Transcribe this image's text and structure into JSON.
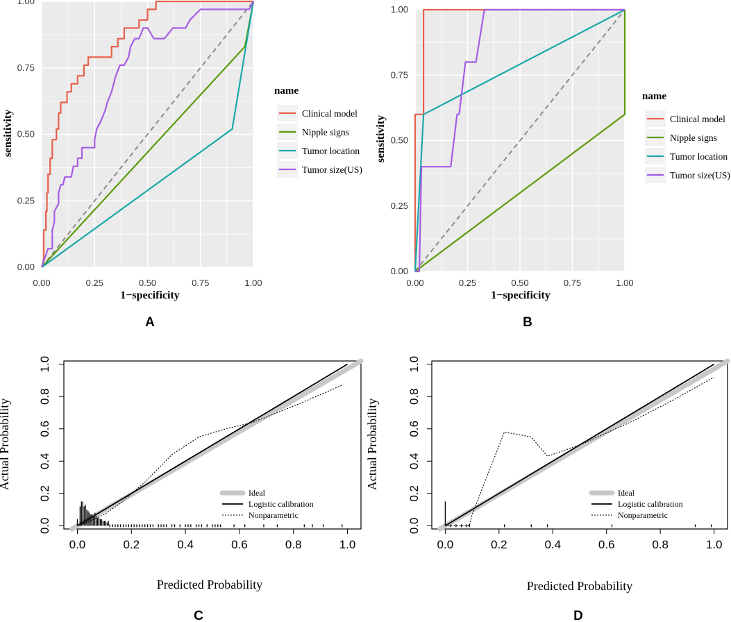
{
  "colors": {
    "clinical": "#E8604C",
    "nipple": "#5C9A0C",
    "location": "#1BA8A8",
    "size": "#A65CE6",
    "diagonal": "#8C8C8C",
    "panel_bg": "#EBEBEB",
    "grid": "#FFFFFF",
    "ideal": "#C8C8C8",
    "black": "#000000"
  },
  "chart_data": [
    {
      "panel": "A",
      "type": "line",
      "title": "",
      "xlabel": "1−specificity",
      "ylabel": "sensitivity",
      "xlim": [
        0,
        1
      ],
      "ylim": [
        0,
        1
      ],
      "xticks": [
        "0.00",
        "0.25",
        "0.50",
        "0.75",
        "1.00"
      ],
      "yticks": [
        "0.00",
        "0.25",
        "0.50",
        "0.75",
        "1.00"
      ],
      "grid": true,
      "legend_title": "name",
      "legend_position": "right",
      "diagonal": true,
      "series": [
        {
          "name": "Clinical model",
          "color_key": "clinical",
          "points": [
            [
              0,
              0
            ],
            [
              0.01,
              0.03
            ],
            [
              0.01,
              0.14
            ],
            [
              0.02,
              0.14
            ],
            [
              0.02,
              0.21
            ],
            [
              0.025,
              0.21
            ],
            [
              0.025,
              0.28
            ],
            [
              0.03,
              0.28
            ],
            [
              0.03,
              0.35
            ],
            [
              0.04,
              0.35
            ],
            [
              0.04,
              0.41
            ],
            [
              0.05,
              0.41
            ],
            [
              0.05,
              0.48
            ],
            [
              0.07,
              0.48
            ],
            [
              0.07,
              0.52
            ],
            [
              0.08,
              0.52
            ],
            [
              0.08,
              0.58
            ],
            [
              0.09,
              0.58
            ],
            [
              0.09,
              0.62
            ],
            [
              0.12,
              0.62
            ],
            [
              0.12,
              0.66
            ],
            [
              0.14,
              0.66
            ],
            [
              0.14,
              0.69
            ],
            [
              0.17,
              0.69
            ],
            [
              0.17,
              0.72
            ],
            [
              0.2,
              0.72
            ],
            [
              0.2,
              0.76
            ],
            [
              0.22,
              0.76
            ],
            [
              0.22,
              0.79
            ],
            [
              0.33,
              0.79
            ],
            [
              0.33,
              0.83
            ],
            [
              0.36,
              0.83
            ],
            [
              0.36,
              0.86
            ],
            [
              0.39,
              0.86
            ],
            [
              0.39,
              0.9
            ],
            [
              0.46,
              0.9
            ],
            [
              0.46,
              0.93
            ],
            [
              0.5,
              0.93
            ],
            [
              0.5,
              0.97
            ],
            [
              0.54,
              0.97
            ],
            [
              0.54,
              1.0
            ],
            [
              1.0,
              1.0
            ]
          ]
        },
        {
          "name": "Nipple signs",
          "color_key": "nipple",
          "points": [
            [
              0,
              0
            ],
            [
              0.96,
              0.83
            ],
            [
              1,
              1
            ]
          ]
        },
        {
          "name": "Tumor location",
          "color_key": "location",
          "points": [
            [
              0,
              0
            ],
            [
              0.9,
              0.52
            ],
            [
              1,
              1
            ]
          ]
        },
        {
          "name": "Tumor size(US)",
          "color_key": "size",
          "points": [
            [
              0,
              0
            ],
            [
              0.03,
              0.07
            ],
            [
              0.05,
              0.07
            ],
            [
              0.05,
              0.14
            ],
            [
              0.06,
              0.17
            ],
            [
              0.06,
              0.21
            ],
            [
              0.08,
              0.24
            ],
            [
              0.08,
              0.28
            ],
            [
              0.09,
              0.31
            ],
            [
              0.1,
              0.31
            ],
            [
              0.11,
              0.34
            ],
            [
              0.14,
              0.34
            ],
            [
              0.15,
              0.38
            ],
            [
              0.17,
              0.38
            ],
            [
              0.17,
              0.41
            ],
            [
              0.19,
              0.41
            ],
            [
              0.19,
              0.45
            ],
            [
              0.25,
              0.45
            ],
            [
              0.25,
              0.48
            ],
            [
              0.26,
              0.52
            ],
            [
              0.28,
              0.55
            ],
            [
              0.3,
              0.59
            ],
            [
              0.31,
              0.62
            ],
            [
              0.33,
              0.66
            ],
            [
              0.35,
              0.72
            ],
            [
              0.37,
              0.76
            ],
            [
              0.39,
              0.76
            ],
            [
              0.41,
              0.79
            ],
            [
              0.42,
              0.83
            ],
            [
              0.44,
              0.86
            ],
            [
              0.46,
              0.86
            ],
            [
              0.48,
              0.9
            ],
            [
              0.5,
              0.9
            ],
            [
              0.53,
              0.86
            ],
            [
              0.58,
              0.86
            ],
            [
              0.62,
              0.9
            ],
            [
              0.68,
              0.9
            ],
            [
              0.7,
              0.93
            ],
            [
              0.75,
              0.97
            ],
            [
              0.9,
              0.97
            ],
            [
              0.95,
              0.97
            ],
            [
              0.98,
              0.97
            ],
            [
              1.0,
              1.0
            ]
          ]
        }
      ]
    },
    {
      "panel": "B",
      "type": "line",
      "title": "",
      "xlabel": "1−specificity",
      "ylabel": "sensitivity",
      "xlim": [
        0,
        1
      ],
      "ylim": [
        0,
        1
      ],
      "xticks": [
        "0.00",
        "0.25",
        "0.50",
        "0.75",
        "1.00"
      ],
      "yticks": [
        "0.00",
        "0.25",
        "0.50",
        "0.75",
        "1.00"
      ],
      "grid": true,
      "legend_title": "name",
      "legend_position": "right",
      "diagonal": true,
      "series": [
        {
          "name": "Clinical model",
          "color_key": "clinical",
          "points": [
            [
              0,
              0
            ],
            [
              0,
              0.6
            ],
            [
              0.04,
              0.6
            ],
            [
              0.04,
              1.0
            ],
            [
              1.0,
              1.0
            ]
          ]
        },
        {
          "name": "Nipple signs",
          "color_key": "nipple",
          "points": [
            [
              0,
              0
            ],
            [
              1,
              0.6
            ],
            [
              1,
              1
            ]
          ]
        },
        {
          "name": "Tumor location",
          "color_key": "location",
          "points": [
            [
              0,
              0
            ],
            [
              0.04,
              0.6
            ],
            [
              1,
              1
            ]
          ]
        },
        {
          "name": "Tumor size(US)",
          "color_key": "size",
          "points": [
            [
              0,
              0
            ],
            [
              0.02,
              0
            ],
            [
              0.03,
              0.4
            ],
            [
              0.17,
              0.4
            ],
            [
              0.2,
              0.6
            ],
            [
              0.21,
              0.6
            ],
            [
              0.24,
              0.8
            ],
            [
              0.29,
              0.8
            ],
            [
              0.33,
              1.0
            ],
            [
              1,
              1
            ]
          ]
        }
      ]
    },
    {
      "panel": "C",
      "type": "line",
      "title": "",
      "xlabel": "Predicted Probability",
      "ylabel": "Actual Probability",
      "xlim": [
        -0.05,
        1.05
      ],
      "ylim": [
        -0.02,
        1.02
      ],
      "xticks": [
        "0.0",
        "0.2",
        "0.4",
        "0.6",
        "0.8",
        "1.0"
      ],
      "yticks": [
        "0.0",
        "0.2",
        "0.4",
        "0.6",
        "0.8",
        "1.0"
      ],
      "grid": false,
      "legend_position": "bottom-right",
      "legend": [
        "Ideal",
        "Logistic calibration",
        "Nonparametric"
      ],
      "nonparametric": [
        [
          0.02,
          0.01
        ],
        [
          0.1,
          0.07
        ],
        [
          0.16,
          0.14
        ],
        [
          0.25,
          0.27
        ],
        [
          0.35,
          0.44
        ],
        [
          0.45,
          0.55
        ],
        [
          0.55,
          0.6
        ],
        [
          0.65,
          0.64
        ],
        [
          0.8,
          0.74
        ],
        [
          0.98,
          0.87
        ]
      ],
      "spike_heights": [
        [
          0.0,
          0.04
        ],
        [
          0.01,
          0.12
        ],
        [
          0.015,
          0.15
        ],
        [
          0.02,
          0.15
        ],
        [
          0.025,
          0.12
        ],
        [
          0.03,
          0.13
        ],
        [
          0.035,
          0.1
        ],
        [
          0.04,
          0.09
        ],
        [
          0.045,
          0.08
        ],
        [
          0.05,
          0.07
        ],
        [
          0.055,
          0.07
        ],
        [
          0.06,
          0.06
        ],
        [
          0.065,
          0.08
        ],
        [
          0.07,
          0.06
        ],
        [
          0.075,
          0.05
        ],
        [
          0.08,
          0.05
        ],
        [
          0.085,
          0.04
        ],
        [
          0.09,
          0.04
        ],
        [
          0.095,
          0.03
        ],
        [
          0.1,
          0.03
        ],
        [
          0.105,
          0.03
        ],
        [
          0.11,
          0.02
        ],
        [
          0.115,
          0.03
        ]
      ],
      "rug": [
        0.12,
        0.13,
        0.14,
        0.15,
        0.16,
        0.17,
        0.18,
        0.19,
        0.2,
        0.21,
        0.22,
        0.23,
        0.24,
        0.25,
        0.26,
        0.27,
        0.28,
        0.3,
        0.31,
        0.32,
        0.33,
        0.35,
        0.36,
        0.38,
        0.4,
        0.41,
        0.42,
        0.44,
        0.45,
        0.46,
        0.48,
        0.5,
        0.51,
        0.52,
        0.53,
        0.58,
        0.62,
        0.69,
        0.74,
        0.84,
        0.87,
        0.91,
        0.98
      ]
    },
    {
      "panel": "D",
      "type": "line",
      "title": "",
      "xlabel": "Predicted Probability",
      "ylabel": "Actual Probability",
      "xlim": [
        -0.05,
        1.05
      ],
      "ylim": [
        -0.02,
        1.02
      ],
      "xticks": [
        "0.0",
        "0.2",
        "0.4",
        "0.6",
        "0.8",
        "1.0"
      ],
      "yticks": [
        "0.0",
        "0.2",
        "0.4",
        "0.6",
        "0.8",
        "1.0"
      ],
      "grid": false,
      "legend_position": "bottom-right",
      "legend": [
        "Ideal",
        "Logistic calibration",
        "Nonparametric"
      ],
      "nonparametric": [
        [
          0.0,
          0.0
        ],
        [
          0.09,
          0.0
        ],
        [
          0.1,
          0.07
        ],
        [
          0.22,
          0.58
        ],
        [
          0.32,
          0.55
        ],
        [
          0.38,
          0.43
        ],
        [
          0.5,
          0.5
        ],
        [
          0.7,
          0.65
        ],
        [
          0.85,
          0.78
        ],
        [
          1.0,
          0.92
        ]
      ],
      "spike_heights": [
        [
          0.0,
          0.15
        ],
        [
          0.005,
          0.01
        ]
      ],
      "rug": [
        0.02,
        0.04,
        0.06,
        0.08,
        0.09,
        0.22,
        0.32,
        0.38,
        0.62,
        0.93,
        0.99
      ]
    }
  ],
  "panel_labels": [
    "A",
    "B",
    "C",
    "D"
  ]
}
